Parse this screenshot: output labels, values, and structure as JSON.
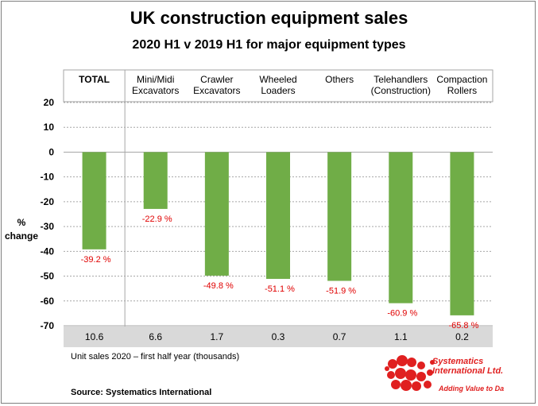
{
  "title": "UK construction equipment sales",
  "subtitle": "2020 H1  v  2019 H1  for major equipment types",
  "ylabel_lines": [
    "%",
    "change"
  ],
  "units_note": "Unit sales 2020 – first half year (thousands)",
  "source": "Source: Systematics International",
  "logo": {
    "name": "Systematics",
    "name2": "International Ltd.",
    "tagline": "Adding Value to Data",
    "color": "#e02020"
  },
  "chart_data": {
    "type": "bar",
    "title": "UK construction equipment sales",
    "subtitle": "2020 H1  v  2019 H1  for major equipment types",
    "categories": [
      [
        "TOTAL"
      ],
      [
        "Mini/Midi",
        "Excavators"
      ],
      [
        "Crawler",
        "Excavators"
      ],
      [
        "Wheeled",
        "Loaders"
      ],
      [
        "Others"
      ],
      [
        "Telehandlers",
        "(Construction)"
      ],
      [
        "Compaction",
        "Rollers"
      ]
    ],
    "values": [
      -39.2,
      -22.9,
      -49.8,
      -51.1,
      -51.9,
      -60.9,
      -65.8
    ],
    "data_labels": [
      "-39.2 %",
      "-22.9 %",
      "-49.8 %",
      "-51.1 %",
      "-51.9 %",
      "-60.9 %",
      "-65.8 %"
    ],
    "unit_sales": [
      "10.6",
      "6.6",
      "1.7",
      "0.3",
      "0.7",
      "1.1",
      "0.2"
    ],
    "ylabel": "% change",
    "ylim": [
      -70,
      20
    ],
    "yticks": [
      20,
      10,
      0,
      -10,
      -20,
      -30,
      -40,
      -50,
      -60,
      -70
    ],
    "grid": true,
    "colors": {
      "bar": "#70ad47",
      "label": "#e00000",
      "units_band": "#d9d9d9",
      "grid": "#a6a6a6"
    }
  }
}
